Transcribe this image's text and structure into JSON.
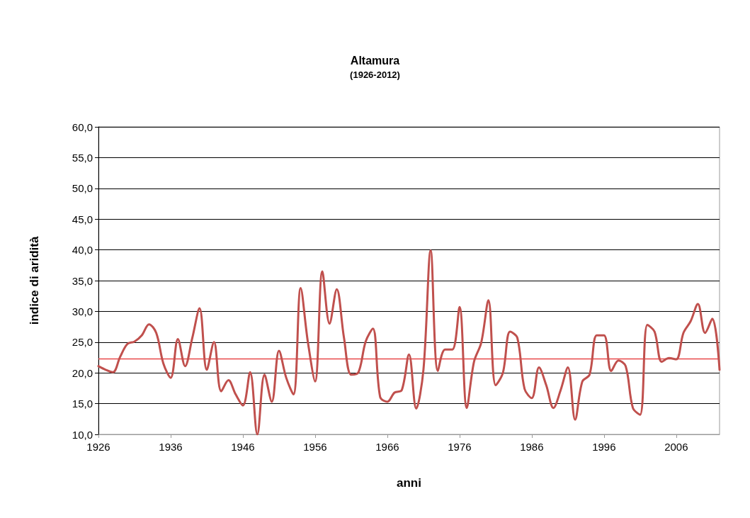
{
  "chart_data": {
    "type": "line",
    "title": "Altamura",
    "subtitle": "(1926-2012)",
    "xlabel": "anni",
    "ylabel": "indice di aridità",
    "categories": [
      "1926",
      null,
      null,
      null,
      null,
      null,
      null,
      null,
      null,
      null,
      "1936",
      null,
      null,
      null,
      null,
      null,
      null,
      null,
      null,
      null,
      "1946",
      null,
      null,
      null,
      null,
      null,
      null,
      null,
      null,
      null,
      "1956",
      null,
      null,
      null,
      null,
      null,
      null,
      null,
      null,
      null,
      "1966",
      null,
      null,
      null,
      null,
      null,
      null,
      null,
      null,
      null,
      "1976",
      null,
      null,
      null,
      null,
      null,
      null,
      null,
      null,
      null,
      "1986",
      null,
      null,
      null,
      null,
      null,
      null,
      null,
      null,
      null,
      "1996",
      null,
      null,
      null,
      null,
      null,
      null,
      null,
      null,
      null,
      "2006",
      null,
      null,
      null,
      null,
      null,
      null
    ],
    "series": [
      {
        "color": "#c0504d",
        "values": [
          21.1,
          20.5,
          20.1,
          22.6,
          24.7,
          25.1,
          26.1,
          27.9,
          26.5,
          21.5,
          19.2,
          25.5,
          21.1,
          25.7,
          30.5,
          20.5,
          25.0,
          17.0,
          18.8,
          16.5,
          14.7,
          20.1,
          10.0,
          19.7,
          15.3,
          23.6,
          19.2,
          16.5,
          33.8,
          25.0,
          18.6,
          36.5,
          28.0,
          33.6,
          25.7,
          19.7,
          20.1,
          25.1,
          27.2,
          16.1,
          15.3,
          16.8,
          17.2,
          23.0,
          14.2,
          20.5,
          39.9,
          20.3,
          23.8,
          23.8,
          30.7,
          14.3,
          21.8,
          24.9,
          31.8,
          18.0,
          20.0,
          26.7,
          25.7,
          17.4,
          15.9,
          20.9,
          18.0,
          14.3,
          17.2,
          20.9,
          12.4,
          18.6,
          19.7,
          26.1,
          26.1,
          20.3,
          22.0,
          21.1,
          14.3,
          13.2,
          27.8,
          26.7,
          21.8,
          22.4,
          22.2,
          26.5,
          28.4,
          31.2,
          26.5,
          28.8,
          20.5
        ]
      }
    ],
    "ylim": [
      10,
      60
    ],
    "yticks": [
      {
        "value": 10,
        "label": "10,0"
      },
      {
        "value": 15,
        "label": "15,0"
      },
      {
        "value": 20,
        "label": "20,0"
      },
      {
        "value": 25,
        "label": "25,0"
      },
      {
        "value": 30,
        "label": "30,0"
      },
      {
        "value": 35,
        "label": "35,0"
      },
      {
        "value": 40,
        "label": "40,0"
      },
      {
        "value": 45,
        "label": "45,0"
      },
      {
        "value": 50,
        "label": "50,0"
      },
      {
        "value": 55,
        "label": "55,0"
      },
      {
        "value": 60,
        "label": "60,0"
      }
    ],
    "ref_lines": [
      {
        "axis": "y",
        "value": 22.3,
        "color": "#e8484a"
      }
    ],
    "grid": "y",
    "marker": "none",
    "line_style": "solid"
  }
}
